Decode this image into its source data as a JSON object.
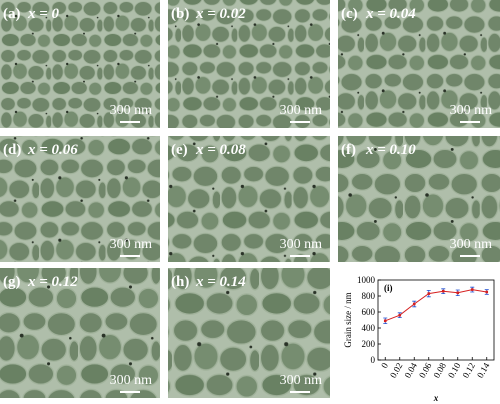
{
  "panels": [
    {
      "label": "(a)",
      "caption": "x = 0",
      "scale_bar": "300 nm"
    },
    {
      "label": "(b)",
      "caption": "x = 0.02",
      "scale_bar": "300 nm"
    },
    {
      "label": "(c)",
      "caption": "x = 0.04",
      "scale_bar": "300 nm"
    },
    {
      "label": "(d)",
      "caption": "x = 0.06",
      "scale_bar": "300 nm"
    },
    {
      "label": "(e)",
      "caption": "x = 0.08",
      "scale_bar": "300 nm"
    },
    {
      "label": "(f)",
      "caption": "x = 0.10",
      "scale_bar": "300 nm"
    },
    {
      "label": "(g)",
      "caption": "x = 0.12",
      "scale_bar": "300 nm"
    },
    {
      "label": "(h)",
      "caption": "x = 0.14",
      "scale_bar": "300 nm"
    }
  ],
  "chart_data": {
    "type": "line",
    "label": "(i)",
    "x_label": "x",
    "y_label": "Grain size / nm",
    "x": [
      0,
      0.02,
      0.04,
      0.06,
      0.08,
      0.1,
      0.12,
      0.14
    ],
    "values": [
      490,
      560,
      700,
      830,
      860,
      840,
      880,
      850
    ],
    "errors": [
      35,
      30,
      35,
      40,
      30,
      35,
      30,
      30
    ],
    "color": "#d62020",
    "error_color": "#1f4fd0",
    "xlim": [
      -0.01,
      0.15
    ],
    "xticks": [
      0,
      0.02,
      0.04,
      0.06,
      0.08,
      {
        "value": 0.1,
        "label": "0.10"
      },
      {
        "value": 0.12,
        "label": "0.12"
      },
      {
        "value": 0.14,
        "label": "0.14"
      }
    ],
    "ylim": [
      0,
      1000
    ],
    "yticks": [
      0,
      200,
      400,
      600,
      800,
      1000
    ]
  }
}
